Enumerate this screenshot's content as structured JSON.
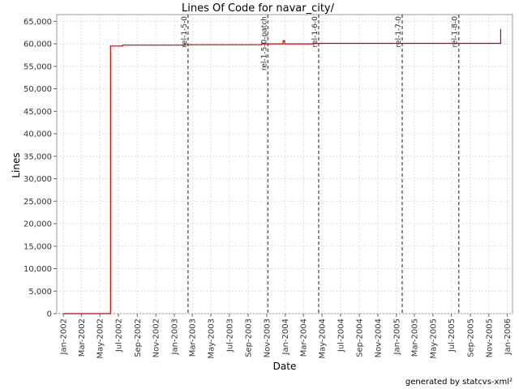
{
  "chart_data": {
    "type": "line",
    "title": "Lines Of Code for navar_city/",
    "xlabel": "Date",
    "ylabel": "Lines",
    "ylim": [
      0,
      66500
    ],
    "xlim": [
      "2001-12-10",
      "2006-01-18"
    ],
    "grid": true,
    "y_ticks": [
      0,
      5000,
      10000,
      15000,
      20000,
      25000,
      30000,
      35000,
      40000,
      45000,
      50000,
      55000,
      60000,
      65000
    ],
    "y_tick_labels": [
      "0",
      "5,000",
      "10,000",
      "15,000",
      "20,000",
      "25,000",
      "30,000",
      "35,000",
      "40,000",
      "45,000",
      "50,000",
      "55,000",
      "60,000",
      "65,000"
    ],
    "x_ticks": [
      "2002-01-01",
      "2002-03-01",
      "2002-05-01",
      "2002-07-01",
      "2002-09-01",
      "2002-11-01",
      "2003-01-01",
      "2003-03-01",
      "2003-05-01",
      "2003-07-01",
      "2003-09-01",
      "2003-11-01",
      "2004-01-01",
      "2004-03-01",
      "2004-05-01",
      "2004-07-01",
      "2004-09-01",
      "2004-11-01",
      "2005-01-01",
      "2005-03-01",
      "2005-05-01",
      "2005-07-01",
      "2005-09-01",
      "2005-11-01",
      "2006-01-01"
    ],
    "x_tick_labels": [
      "Jan-2002",
      "Mar-2002",
      "May-2002",
      "Jul-2002",
      "Sep-2002",
      "Nov-2002",
      "Jan-2003",
      "Mar-2003",
      "May-2003",
      "Jul-2003",
      "Sep-2003",
      "Nov-2003",
      "Jan-2004",
      "Mar-2004",
      "May-2004",
      "Jul-2004",
      "Sep-2004",
      "Nov-2004",
      "Jan-2005",
      "Mar-2005",
      "May-2005",
      "Jul-2005",
      "Sep-2005",
      "Nov-2005",
      "Jan-2006"
    ],
    "series": [
      {
        "color": "#cc0000",
        "step": true,
        "points": [
          [
            "2002-01-01",
            0
          ],
          [
            "2002-06-05",
            0
          ],
          [
            "2002-06-05",
            59500
          ],
          [
            "2002-07-15",
            59500
          ],
          [
            "2002-07-15",
            59700
          ],
          [
            "2003-02-05",
            59700
          ],
          [
            "2003-02-05",
            59800
          ],
          [
            "2003-10-15",
            59800
          ],
          [
            "2003-10-15",
            60000
          ],
          [
            "2003-12-25",
            60000
          ],
          [
            "2003-12-25",
            60700
          ],
          [
            "2003-12-30",
            60700
          ],
          [
            "2003-12-30",
            60000
          ],
          [
            "2004-04-01",
            60000
          ],
          [
            "2004-04-01",
            60100
          ],
          [
            "2005-12-10",
            60100
          ],
          [
            "2005-12-10",
            63300
          ]
        ]
      }
    ],
    "markers": [
      {
        "label": "rel-1-5-0",
        "x": "2003-02-15"
      },
      {
        "label": "rel-1-5-0-patch",
        "x": "2003-11-05"
      },
      {
        "label": "rel-1-6-0",
        "x": "2004-04-20"
      },
      {
        "label": "rel-1-7-0",
        "x": "2005-01-20"
      },
      {
        "label": "rel-1-8-0",
        "x": "2005-07-25"
      }
    ]
  },
  "footer": "generated by statcvs-xml²"
}
